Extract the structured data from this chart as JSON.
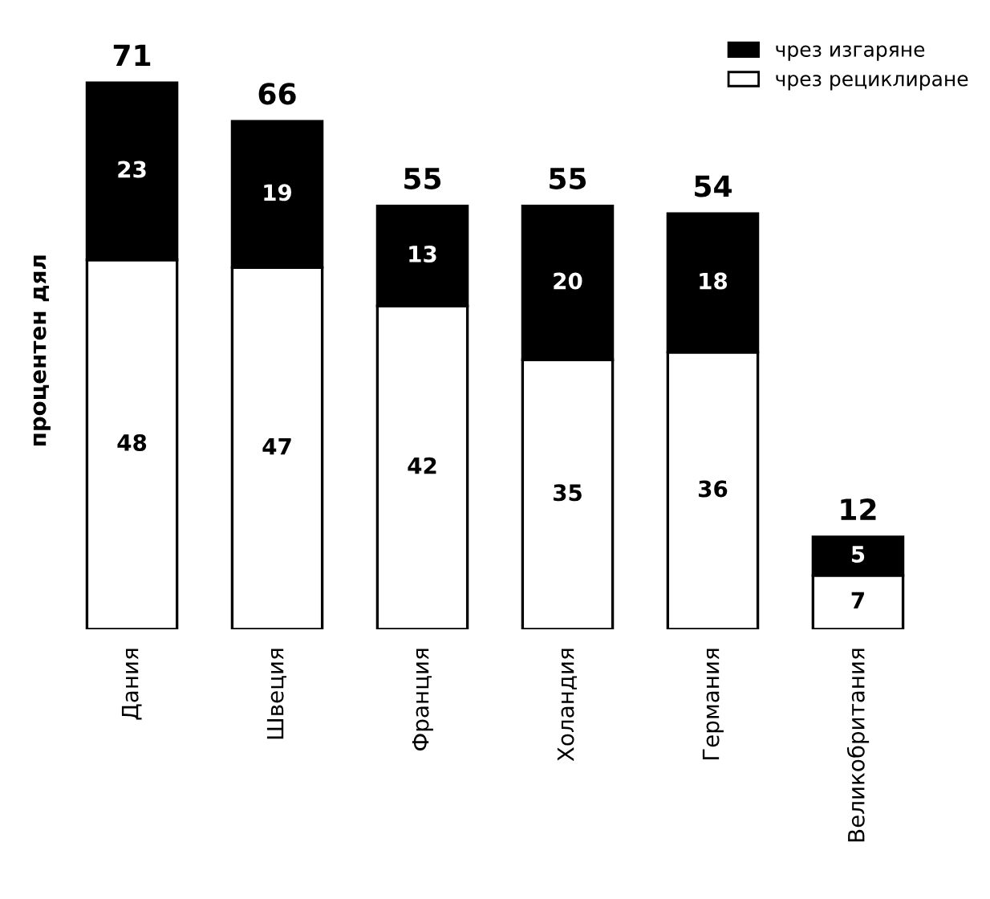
{
  "chart_data": {
    "type": "bar",
    "stacked": true,
    "ylabel": "процентен дял",
    "categories": [
      "Дания",
      "Швеция",
      "Франция",
      "Холандия",
      "Германия",
      "Великобритания"
    ],
    "series": [
      {
        "name": "чрез рециклиране",
        "color": "#ffffff",
        "values": [
          48,
          47,
          42,
          35,
          36,
          7
        ]
      },
      {
        "name": "чрез изгаряне",
        "color": "#000000",
        "values": [
          23,
          19,
          13,
          20,
          18,
          5
        ]
      }
    ],
    "data_labels": true,
    "totals": [
      "71",
      "66",
      "55",
      "55",
      "54",
      "12"
    ],
    "legend": "top right",
    "grid": false
  }
}
